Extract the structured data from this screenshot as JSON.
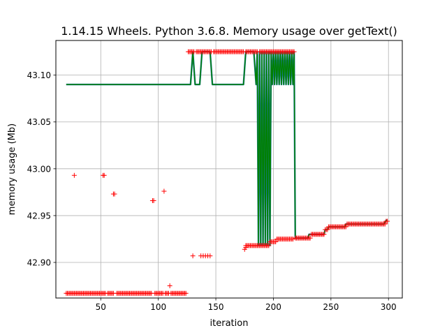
{
  "chart_data": {
    "type": "line",
    "title": "1.14.15 Wheels. Python 3.6.8. Memory usage over getText()",
    "xlabel": "iteration",
    "ylabel": "memory usage (Mb)",
    "xlim": [
      11,
      312
    ],
    "ylim": [
      42.862,
      43.137
    ],
    "xticks": [
      50,
      100,
      150,
      200,
      250,
      300
    ],
    "yticks": [
      42.9,
      42.95,
      43.0,
      43.05,
      43.1
    ],
    "grid": true,
    "legend": "none",
    "line_segments": [
      [
        [
          20,
          43.09
        ],
        [
          128,
          43.09
        ],
        [
          130,
          43.125
        ],
        [
          132,
          43.09
        ],
        [
          136,
          43.09
        ],
        [
          138,
          43.125
        ],
        [
          145,
          43.125
        ],
        [
          147,
          43.09
        ],
        [
          174,
          43.09
        ],
        [
          176,
          43.125
        ],
        [
          183,
          43.125
        ],
        [
          185,
          43.09
        ],
        [
          186,
          43.125
        ],
        [
          187,
          42.918
        ],
        [
          188,
          43.125
        ],
        [
          189,
          42.918
        ],
        [
          190,
          43.125
        ],
        [
          191,
          42.918
        ],
        [
          192,
          43.125
        ],
        [
          193,
          42.918
        ],
        [
          194,
          43.125
        ],
        [
          195,
          42.918
        ],
        [
          196,
          43.125
        ],
        [
          197,
          42.918
        ],
        [
          198,
          43.125
        ],
        [
          199,
          43.09
        ],
        [
          200,
          43.125
        ],
        [
          201,
          43.09
        ],
        [
          202,
          43.125
        ],
        [
          203,
          43.09
        ],
        [
          204,
          43.125
        ],
        [
          205,
          43.09
        ],
        [
          206,
          43.125
        ],
        [
          207,
          43.09
        ],
        [
          208,
          43.125
        ],
        [
          209,
          43.09
        ],
        [
          210,
          43.125
        ],
        [
          211,
          43.09
        ],
        [
          212,
          43.125
        ],
        [
          213,
          43.09
        ],
        [
          214,
          43.125
        ],
        [
          215,
          43.09
        ],
        [
          216,
          43.125
        ],
        [
          217,
          43.09
        ],
        [
          218,
          43.125
        ],
        [
          219,
          42.926
        ],
        [
          230,
          42.926
        ],
        [
          231,
          42.93
        ],
        [
          244,
          42.93
        ],
        [
          245,
          42.935
        ],
        [
          247,
          42.935
        ],
        [
          248,
          42.938
        ],
        [
          262,
          42.938
        ],
        [
          263,
          42.941
        ],
        [
          296,
          42.941
        ],
        [
          298,
          42.945
        ],
        [
          299,
          42.945
        ]
      ]
    ],
    "scatter_groups": [
      {
        "x_start": 20,
        "x_end": 54,
        "y": 42.867
      },
      {
        "x_start": 56,
        "x_end": 61,
        "y": 42.867
      },
      {
        "x_start": 64,
        "x_end": 94,
        "y": 42.867
      },
      {
        "x_start": 97,
        "x_end": 104,
        "y": 42.867
      },
      {
        "x_start": 106,
        "x_end": 109,
        "y": 42.867
      },
      {
        "x_start": 111,
        "x_end": 124,
        "y": 42.867
      },
      {
        "x_start": 126,
        "x_end": 131,
        "y": 43.125
      },
      {
        "x_start": 133,
        "x_end": 146,
        "y": 43.125
      },
      {
        "x_start": 148,
        "x_end": 174,
        "y": 43.125
      },
      {
        "x_start": 176,
        "x_end": 186,
        "y": 43.125
      },
      {
        "x_start": 188,
        "x_end": 218,
        "y": 43.125
      },
      {
        "x_start": 176,
        "x_end": 196,
        "y": 42.918
      },
      {
        "x_start": 197,
        "x_end": 202,
        "y": 42.922
      },
      {
        "x_start": 203,
        "x_end": 217,
        "y": 42.925
      },
      {
        "x_start": 219,
        "x_end": 232,
        "y": 42.926
      },
      {
        "x_start": 233,
        "x_end": 244,
        "y": 42.93
      },
      {
        "x_start": 245,
        "x_end": 247,
        "y": 42.935
      },
      {
        "x_start": 248,
        "x_end": 263,
        "y": 42.938
      },
      {
        "x_start": 264,
        "x_end": 297,
        "y": 42.941
      },
      {
        "x_start": 298,
        "x_end": 299,
        "y": 42.944
      }
    ],
    "scatter_points": [
      [
        27,
        42.993
      ],
      [
        52,
        42.993
      ],
      [
        53,
        42.993
      ],
      [
        61,
        42.973
      ],
      [
        62,
        42.973
      ],
      [
        95,
        42.966
      ],
      [
        96,
        42.966
      ],
      [
        105,
        42.976
      ],
      [
        110,
        42.875
      ],
      [
        130,
        42.907
      ],
      [
        137,
        42.907
      ],
      [
        139,
        42.907
      ],
      [
        141,
        42.907
      ],
      [
        143,
        42.907
      ],
      [
        145,
        42.907
      ],
      [
        175,
        42.914
      ],
      [
        176,
        42.916
      ]
    ],
    "colors": {
      "line": "#008000",
      "line_shadow": "#1f77b4",
      "marker": "#ff0000",
      "grid": "#b0b0b0"
    }
  }
}
